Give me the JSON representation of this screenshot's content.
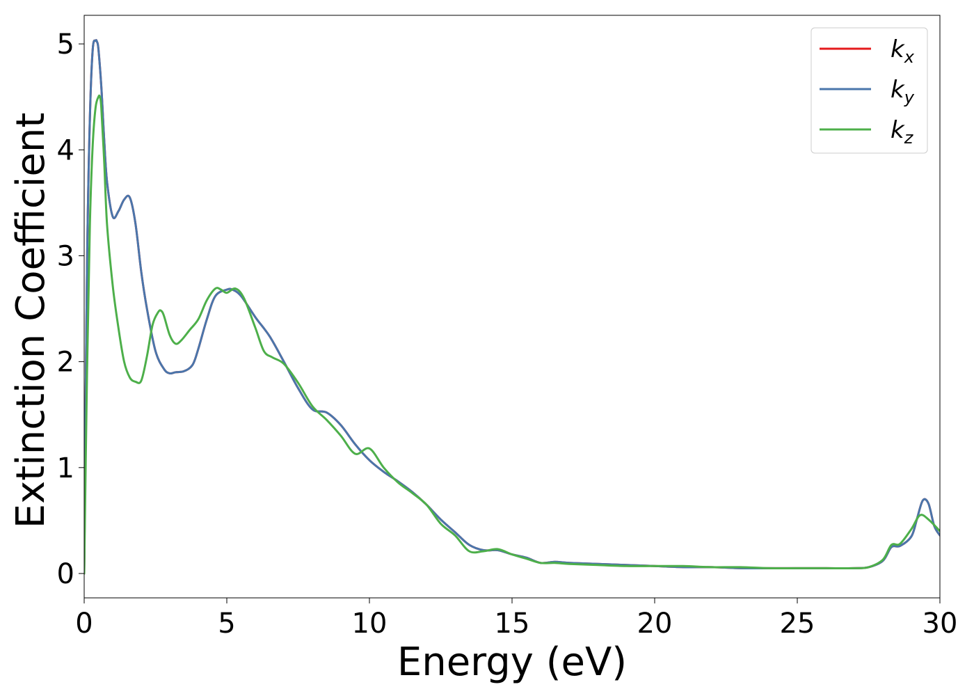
{
  "chart_data": {
    "type": "line",
    "title": "",
    "xlabel": "Energy (eV)",
    "ylabel": "Extinction Coefficient",
    "xlim": [
      0,
      30
    ],
    "ylim": [
      -0.23,
      5.27
    ],
    "xticks": [
      0,
      5,
      10,
      15,
      20,
      25,
      30
    ],
    "yticks": [
      0,
      1,
      2,
      3,
      4,
      5
    ],
    "grid": false,
    "legend_position": "top-right",
    "series": [
      {
        "name": "k",
        "subscript": "x",
        "color": "#e41a1c",
        "x": [
          0,
          0.1,
          0.2,
          0.3,
          0.4,
          0.45,
          0.5,
          0.6,
          0.7,
          0.8,
          1.0,
          1.2,
          1.4,
          1.6,
          1.8,
          2.0,
          2.2,
          2.5,
          2.8,
          3.0,
          3.2,
          3.5,
          3.8,
          4.0,
          4.3,
          4.6,
          5.0,
          5.2,
          5.5,
          6.0,
          6.5,
          7.0,
          7.5,
          8.0,
          8.5,
          9.0,
          9.5,
          10.0,
          10.5,
          11.0,
          11.5,
          12.0,
          12.5,
          13.0,
          13.5,
          14.0,
          14.5,
          15.0,
          15.5,
          16.0,
          16.5,
          17.0,
          18.0,
          19.0,
          20.0,
          21.0,
          22.0,
          23.0,
          24.0,
          25.0,
          26.0,
          27.0,
          27.5,
          28.0,
          28.3,
          28.6,
          29.0,
          29.2,
          29.4,
          29.6,
          29.8,
          30.0
        ],
        "y": [
          0.0,
          2.9,
          4.3,
          4.95,
          5.03,
          5.02,
          4.95,
          4.6,
          4.1,
          3.7,
          3.37,
          3.42,
          3.53,
          3.55,
          3.3,
          2.85,
          2.5,
          2.1,
          1.93,
          1.89,
          1.9,
          1.91,
          1.97,
          2.12,
          2.4,
          2.62,
          2.68,
          2.68,
          2.62,
          2.42,
          2.24,
          2.0,
          1.75,
          1.55,
          1.52,
          1.4,
          1.22,
          1.07,
          0.96,
          0.87,
          0.77,
          0.65,
          0.51,
          0.39,
          0.27,
          0.22,
          0.22,
          0.18,
          0.15,
          0.1,
          0.11,
          0.1,
          0.09,
          0.08,
          0.07,
          0.06,
          0.06,
          0.05,
          0.05,
          0.05,
          0.05,
          0.05,
          0.06,
          0.12,
          0.25,
          0.26,
          0.35,
          0.52,
          0.69,
          0.66,
          0.45,
          0.36
        ]
      },
      {
        "name": "k",
        "subscript": "y",
        "color": "#4a76ab",
        "x": [
          0,
          0.1,
          0.2,
          0.3,
          0.4,
          0.45,
          0.5,
          0.6,
          0.7,
          0.8,
          1.0,
          1.2,
          1.4,
          1.6,
          1.8,
          2.0,
          2.2,
          2.5,
          2.8,
          3.0,
          3.2,
          3.5,
          3.8,
          4.0,
          4.3,
          4.6,
          5.0,
          5.2,
          5.5,
          6.0,
          6.5,
          7.0,
          7.5,
          8.0,
          8.5,
          9.0,
          9.5,
          10.0,
          10.5,
          11.0,
          11.5,
          12.0,
          12.5,
          13.0,
          13.5,
          14.0,
          14.5,
          15.0,
          15.5,
          16.0,
          16.5,
          17.0,
          18.0,
          19.0,
          20.0,
          21.0,
          22.0,
          23.0,
          24.0,
          25.0,
          26.0,
          27.0,
          27.5,
          28.0,
          28.3,
          28.6,
          29.0,
          29.2,
          29.4,
          29.6,
          29.8,
          30.0
        ],
        "y": [
          0.0,
          2.9,
          4.3,
          4.95,
          5.03,
          5.02,
          4.95,
          4.6,
          4.1,
          3.7,
          3.37,
          3.42,
          3.53,
          3.55,
          3.3,
          2.85,
          2.5,
          2.1,
          1.93,
          1.89,
          1.9,
          1.91,
          1.97,
          2.12,
          2.4,
          2.62,
          2.68,
          2.68,
          2.62,
          2.42,
          2.24,
          2.0,
          1.75,
          1.55,
          1.52,
          1.4,
          1.22,
          1.07,
          0.96,
          0.87,
          0.77,
          0.65,
          0.51,
          0.39,
          0.27,
          0.22,
          0.22,
          0.18,
          0.15,
          0.1,
          0.11,
          0.1,
          0.09,
          0.08,
          0.07,
          0.06,
          0.06,
          0.05,
          0.05,
          0.05,
          0.05,
          0.05,
          0.06,
          0.12,
          0.25,
          0.26,
          0.35,
          0.52,
          0.69,
          0.66,
          0.45,
          0.36
        ]
      },
      {
        "name": "k",
        "subscript": "z",
        "color": "#4daf4a",
        "x": [
          0,
          0.1,
          0.2,
          0.3,
          0.4,
          0.5,
          0.55,
          0.6,
          0.7,
          0.8,
          1.0,
          1.2,
          1.4,
          1.6,
          1.8,
          2.0,
          2.2,
          2.4,
          2.6,
          2.7,
          2.8,
          3.0,
          3.2,
          3.4,
          3.7,
          4.0,
          4.3,
          4.6,
          4.8,
          5.0,
          5.3,
          5.6,
          6.0,
          6.3,
          6.6,
          7.0,
          7.5,
          8.0,
          8.5,
          9.0,
          9.5,
          10.0,
          10.5,
          11.0,
          11.5,
          12.0,
          12.5,
          13.0,
          13.5,
          14.0,
          14.5,
          15.0,
          15.5,
          16.0,
          16.5,
          17.0,
          18.0,
          19.0,
          20.0,
          21.0,
          22.0,
          23.0,
          24.0,
          25.0,
          26.0,
          27.0,
          27.5,
          28.0,
          28.3,
          28.6,
          29.0,
          29.3,
          29.6,
          30.0
        ],
        "y": [
          0.0,
          1.9,
          3.3,
          4.05,
          4.4,
          4.5,
          4.5,
          4.4,
          3.9,
          3.3,
          2.72,
          2.32,
          2.0,
          1.85,
          1.81,
          1.82,
          2.05,
          2.35,
          2.47,
          2.48,
          2.43,
          2.25,
          2.17,
          2.2,
          2.3,
          2.4,
          2.58,
          2.69,
          2.68,
          2.65,
          2.69,
          2.6,
          2.32,
          2.1,
          2.04,
          1.98,
          1.8,
          1.58,
          1.45,
          1.3,
          1.13,
          1.18,
          1.0,
          0.86,
          0.76,
          0.65,
          0.47,
          0.36,
          0.21,
          0.21,
          0.23,
          0.18,
          0.14,
          0.1,
          0.1,
          0.09,
          0.08,
          0.07,
          0.07,
          0.07,
          0.06,
          0.06,
          0.05,
          0.05,
          0.05,
          0.05,
          0.06,
          0.13,
          0.27,
          0.28,
          0.42,
          0.55,
          0.51,
          0.4
        ]
      }
    ]
  }
}
